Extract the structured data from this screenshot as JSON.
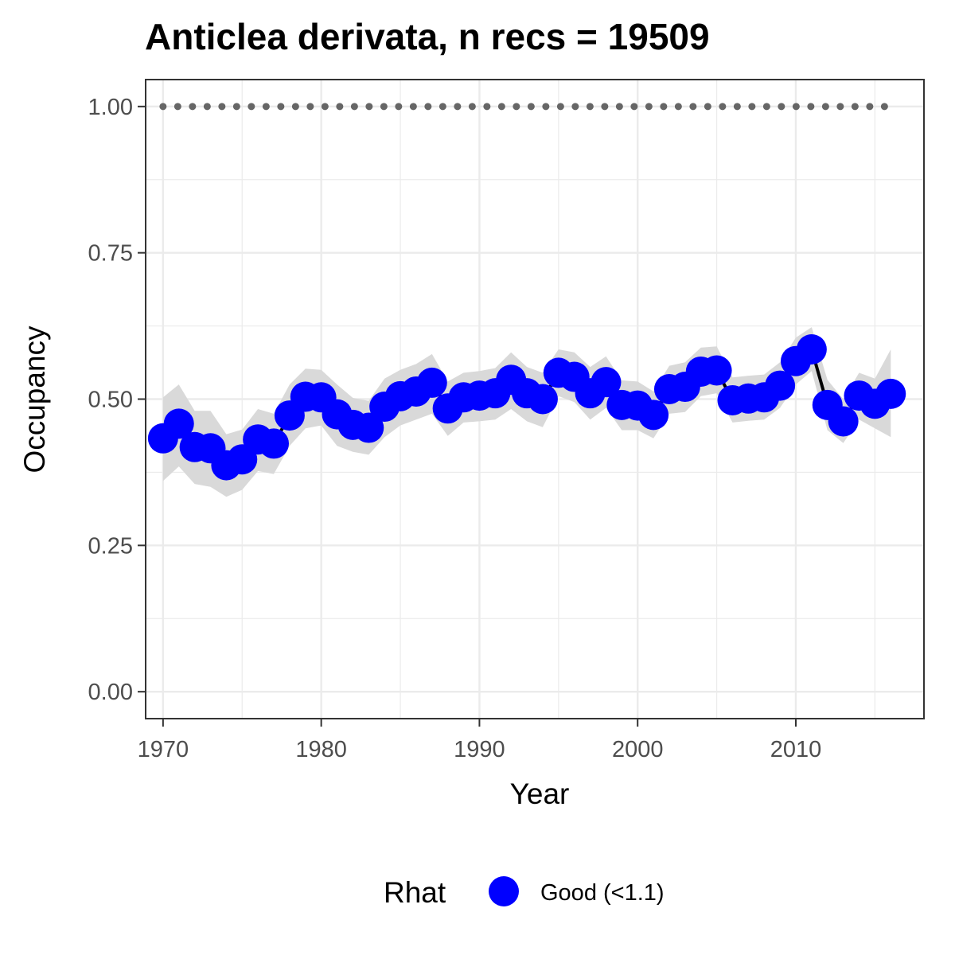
{
  "chart_data": {
    "type": "line",
    "title": "Anticlea derivata, n recs = 19509",
    "xlabel": "Year",
    "ylabel": "Occupancy",
    "xlim": [
      1968.9,
      2018.1
    ],
    "ylim": [
      -0.046,
      1.046
    ],
    "x_ticks": [
      1970,
      1980,
      1990,
      2000,
      2010
    ],
    "x_tick_labels": [
      "1970",
      "1980",
      "1990",
      "2000",
      "2010"
    ],
    "y_ticks": [
      0,
      0.25,
      0.5,
      0.75,
      1.0
    ],
    "y_tick_labels": [
      "0.00",
      "0.25",
      "0.50",
      "0.75",
      "1.00"
    ],
    "grid": true,
    "legend": {
      "position": "bottom",
      "title": "Rhat",
      "entries": [
        {
          "label": "Good (<1.1)",
          "color": "#0000ff"
        }
      ]
    },
    "colors": {
      "points": "#0000ff",
      "line": "#000000",
      "ribbon": "#d9d9d9",
      "reference": "#666666",
      "grid": "#ebebeb",
      "panel_border": "#333333"
    },
    "reference_line": {
      "y": 1.0,
      "style": "dotted"
    },
    "series": [
      {
        "x": [
          1970,
          1971,
          1972,
          1973,
          1974,
          1975,
          1976,
          1977,
          1978,
          1979,
          1980,
          1981,
          1982,
          1983,
          1984,
          1985,
          1986,
          1987,
          1988,
          1989,
          1990,
          1991,
          1992,
          1993,
          1994,
          1995,
          1996,
          1997,
          1998,
          1999,
          2000,
          2001,
          2002,
          2003,
          2004,
          2005,
          2006,
          2007,
          2008,
          2009,
          2010,
          2011,
          2012,
          2013,
          2014,
          2015,
          2016
        ],
        "values": [
          0.433,
          0.458,
          0.418,
          0.416,
          0.387,
          0.397,
          0.431,
          0.424,
          0.472,
          0.504,
          0.503,
          0.474,
          0.456,
          0.451,
          0.487,
          0.505,
          0.513,
          0.528,
          0.484,
          0.503,
          0.506,
          0.51,
          0.533,
          0.51,
          0.5,
          0.545,
          0.538,
          0.51,
          0.529,
          0.49,
          0.489,
          0.473,
          0.517,
          0.521,
          0.547,
          0.549,
          0.498,
          0.501,
          0.503,
          0.523,
          0.565,
          0.585,
          0.49,
          0.462,
          0.506,
          0.492,
          0.509
        ],
        "lower": [
          0.36,
          0.385,
          0.355,
          0.35,
          0.333,
          0.345,
          0.377,
          0.372,
          0.42,
          0.45,
          0.455,
          0.42,
          0.41,
          0.405,
          0.435,
          0.455,
          0.465,
          0.475,
          0.437,
          0.46,
          0.462,
          0.465,
          0.483,
          0.462,
          0.452,
          0.505,
          0.495,
          0.465,
          0.485,
          0.447,
          0.447,
          0.433,
          0.475,
          0.478,
          0.505,
          0.51,
          0.46,
          0.463,
          0.465,
          0.485,
          0.525,
          0.548,
          0.447,
          0.425,
          0.465,
          0.45,
          0.435
        ],
        "upper": [
          0.503,
          0.525,
          0.48,
          0.48,
          0.44,
          0.448,
          0.483,
          0.475,
          0.525,
          0.552,
          0.55,
          0.525,
          0.502,
          0.497,
          0.535,
          0.55,
          0.56,
          0.577,
          0.53,
          0.545,
          0.548,
          0.553,
          0.58,
          0.555,
          0.545,
          0.585,
          0.58,
          0.555,
          0.573,
          0.532,
          0.53,
          0.513,
          0.557,
          0.563,
          0.588,
          0.59,
          0.537,
          0.54,
          0.542,
          0.563,
          0.605,
          0.623,
          0.533,
          0.5,
          0.545,
          0.535,
          0.585
        ]
      }
    ]
  }
}
